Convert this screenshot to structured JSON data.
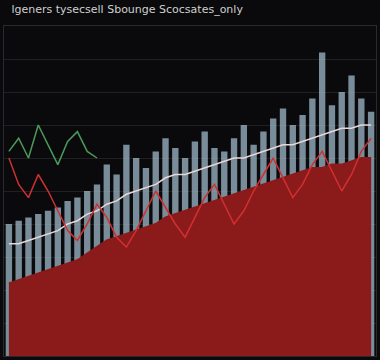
{
  "chart_data": {
    "type": "line",
    "title": "lgeners tysecsell Sbounge Scocsates_only",
    "x": [
      0,
      1,
      2,
      3,
      4,
      5,
      6,
      7,
      8,
      9,
      10,
      11,
      12,
      13,
      14,
      15,
      16,
      17,
      18,
      19,
      20,
      21,
      22,
      23,
      24,
      25,
      26,
      27,
      28,
      29,
      30,
      31,
      32,
      33,
      34,
      35,
      36,
      37
    ],
    "xlim": [
      -0.5,
      37.5
    ],
    "ylim": [
      0,
      100
    ],
    "yticks": [
      10,
      20,
      30,
      40,
      50,
      60,
      70,
      80,
      90
    ],
    "grid": true,
    "tick_labels": false,
    "series": [
      {
        "type": "bar",
        "color": "#9fb8c8",
        "values": [
          40,
          41,
          42,
          43,
          44,
          45,
          47,
          48,
          50,
          52,
          58,
          55,
          64,
          60,
          57,
          62,
          66,
          63,
          60,
          65,
          68,
          63,
          62,
          66,
          70,
          64,
          68,
          72,
          75,
          70,
          73,
          78,
          92,
          76,
          80,
          85,
          78,
          74
        ]
      },
      {
        "type": "area",
        "color": "#8b1a1a",
        "values": [
          22,
          23,
          24,
          25,
          26,
          27,
          28,
          29,
          31,
          33,
          35,
          36,
          37,
          38,
          39,
          40,
          42,
          43,
          44,
          45,
          46,
          47,
          48,
          49,
          50,
          51,
          52,
          53,
          54,
          55,
          56,
          57,
          57,
          58,
          58,
          59,
          60,
          60
        ]
      },
      {
        "type": "line",
        "color": "#e8d8d8",
        "values": [
          34,
          34,
          35,
          36,
          37,
          38,
          40,
          41,
          43,
          44,
          46,
          47,
          49,
          50,
          51,
          52,
          54,
          55,
          55,
          56,
          57,
          58,
          59,
          60,
          60,
          61,
          62,
          63,
          64,
          64,
          65,
          66,
          67,
          68,
          69,
          69,
          70,
          70
        ]
      },
      {
        "type": "line",
        "color": "#d03030",
        "values": [
          60,
          52,
          48,
          55,
          50,
          44,
          38,
          35,
          40,
          46,
          42,
          36,
          33,
          38,
          44,
          50,
          45,
          40,
          36,
          42,
          48,
          52,
          46,
          40,
          44,
          50,
          55,
          60,
          54,
          48,
          52,
          58,
          62,
          56,
          50,
          55,
          62,
          66
        ]
      },
      {
        "type": "line",
        "color": "#4a9a5a",
        "values": [
          62,
          66,
          60,
          70,
          64,
          58,
          65,
          68,
          62,
          60,
          null,
          null,
          null,
          null,
          null,
          null,
          null,
          null,
          null,
          null,
          null,
          null,
          null,
          null,
          null,
          null,
          null,
          null,
          null,
          null,
          null,
          null,
          null,
          null,
          null,
          null,
          null,
          null
        ]
      }
    ]
  }
}
